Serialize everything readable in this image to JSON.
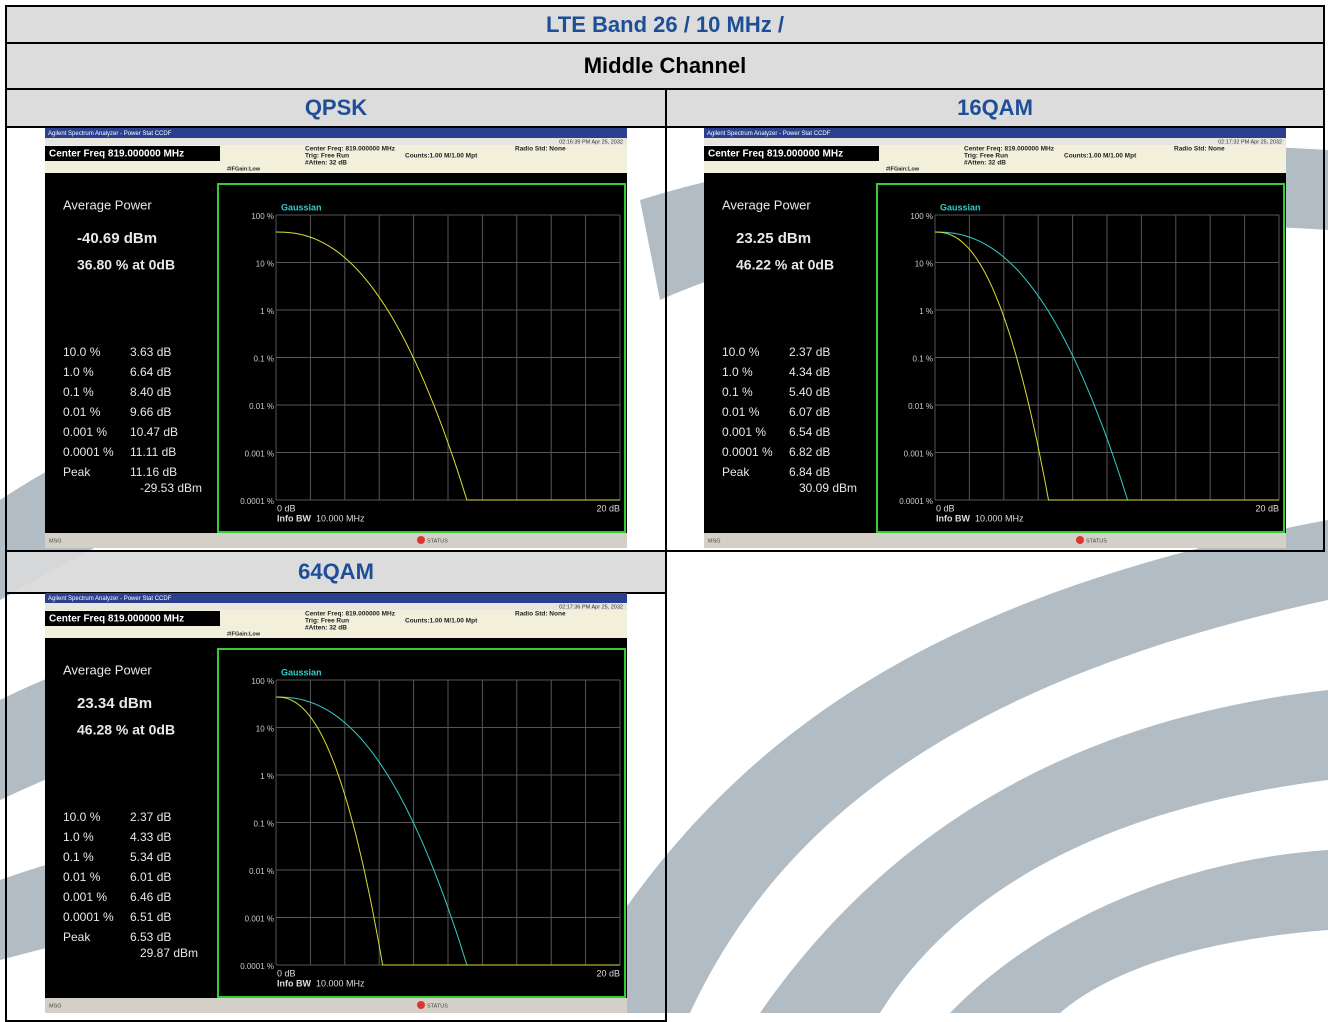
{
  "header": {
    "title": "LTE Band 26 / 10 MHz /",
    "subtitle": "Middle Channel"
  },
  "analyzer": {
    "app_title": "Agilent Spectrum Analyzer - Power Stat CCDF",
    "center_freq_box": "Center Freq 819.000000 MHz",
    "center_freq": "Center Freq: 819.000000 MHz",
    "trig": "Trig: Free Run",
    "atten": "#Atten: 32 dB",
    "counts": "Counts:1.00 M/1.00 Mpt",
    "radio_std": "Radio Std: None",
    "if_gain": "#IFGain:Low",
    "avg_label": "Average Power",
    "peak_label": "Peak",
    "trace_label": "Gaussian",
    "y_labels": [
      "100 %",
      "10 %",
      "1 %",
      "0.1 %",
      "0.01 %",
      "0.001 %",
      "0.0001 %"
    ],
    "x_start": "0 dB",
    "x_end": "20 dB",
    "info_bw_label": "Info BW",
    "info_bw": "10.000 MHz",
    "msg": "MSG",
    "status": "STATUS",
    "stat_labels": [
      "10.0 %",
      "1.0 %",
      "0.1 %",
      "0.01 %",
      "0.001 %",
      "0.0001 %"
    ]
  },
  "panels": [
    {
      "label": "QPSK",
      "timestamp": "02:16:39 PM Apr 25, 2032",
      "avg_power": "-40.69 dBm",
      "at_0db": "36.80 % at 0dB",
      "stat_values": [
        "3.63 dB",
        "6.64 dB",
        "8.40 dB",
        "9.66 dB",
        "10.47 dB",
        "11.11 dB"
      ],
      "peak": "11.16 dB",
      "peak_power": "-29.53 dBm"
    },
    {
      "label": "16QAM",
      "timestamp": "02:17:32 PM Apr 25, 2032",
      "avg_power": "23.25 dBm",
      "at_0db": "46.22 % at 0dB",
      "stat_values": [
        "2.37 dB",
        "4.34 dB",
        "5.40 dB",
        "6.07 dB",
        "6.54 dB",
        "6.82 dB"
      ],
      "peak": "6.84 dB",
      "peak_power": "30.09 dBm"
    },
    {
      "label": "64QAM",
      "timestamp": "02:17:36 PM Apr 25, 2032",
      "avg_power": "23.34 dBm",
      "at_0db": "46.28 % at 0dB",
      "stat_values": [
        "2.37 dB",
        "4.33 dB",
        "5.34 dB",
        "6.01 dB",
        "6.46 dB",
        "6.51 dB"
      ],
      "peak": "6.53 dB",
      "peak_power": "29.87 dBm"
    }
  ]
}
